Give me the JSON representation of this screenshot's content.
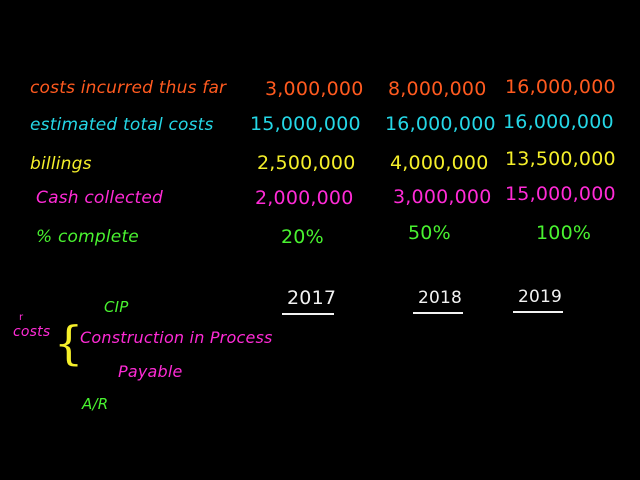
{
  "rows": [
    {
      "label": "costs incurred thus far",
      "values": [
        "3,000,000",
        "8,000,000",
        "16,000,000"
      ]
    },
    {
      "label": "estimated total costs",
      "values": [
        "15,000,000",
        "16,000,000",
        "16,000,000"
      ]
    },
    {
      "label": "billings",
      "values": [
        "2,500,000",
        "4,000,000",
        "13,500,000"
      ]
    },
    {
      "label": "Cash collected",
      "values": [
        "2,000,000",
        "3,000,000",
        "15,000,000"
      ]
    },
    {
      "label": "% complete",
      "values": [
        "20%",
        "50%",
        "100%"
      ]
    }
  ],
  "years": [
    "2017",
    "2018",
    "2019"
  ],
  "notes": {
    "cip": "CIP",
    "costs": "costs",
    "construction": "Construction in Process",
    "payable": "Payable",
    "ar": "A/R"
  },
  "colors": {
    "orange": "#ff5a1f",
    "cyan": "#25d7e6",
    "yellow": "#f5ef2a",
    "magenta": "#ff2bd6",
    "green": "#49f230",
    "white": "#f2f2f2",
    "background": "#000000"
  }
}
